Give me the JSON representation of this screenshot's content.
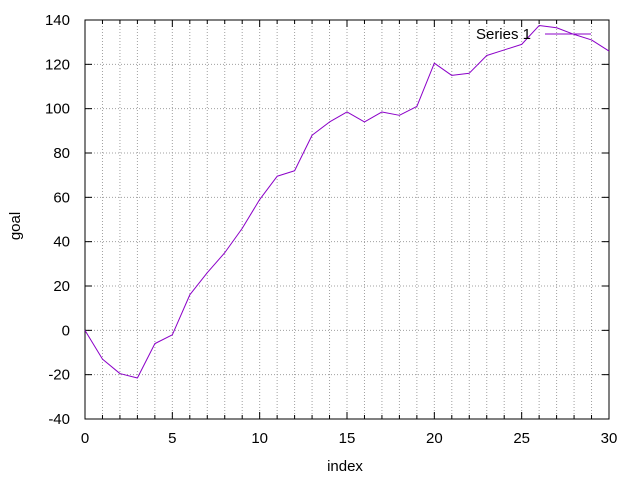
{
  "chart_data": {
    "type": "line",
    "xlabel": "index",
    "ylabel": "goal",
    "xlim": [
      0,
      30
    ],
    "ylim": [
      -40,
      140
    ],
    "xticks": [
      0,
      5,
      10,
      15,
      20,
      25,
      30
    ],
    "yticks": [
      -40,
      -20,
      0,
      20,
      40,
      60,
      80,
      100,
      120,
      140
    ],
    "x_minor_step": 1,
    "y_minor_step": 20,
    "grid": true,
    "legend_position": "top-right",
    "series": [
      {
        "name": "Series 1",
        "color": "#8B00C8",
        "x": [
          0,
          1,
          2,
          3,
          4,
          5,
          6,
          7,
          8,
          9,
          10,
          11,
          12,
          13,
          14,
          15,
          16,
          17,
          18,
          19,
          20,
          21,
          22,
          23,
          24,
          25,
          26,
          27,
          28,
          29,
          30
        ],
        "y": [
          0,
          -13,
          -19.5,
          -21.5,
          -6,
          -2,
          16,
          26,
          35,
          46,
          59,
          69.5,
          72,
          88,
          94,
          98.5,
          94,
          98.5,
          97,
          101,
          120.5,
          115,
          116,
          124,
          126.5,
          129,
          137.5,
          136.5,
          133.5,
          131,
          126
        ]
      }
    ]
  }
}
